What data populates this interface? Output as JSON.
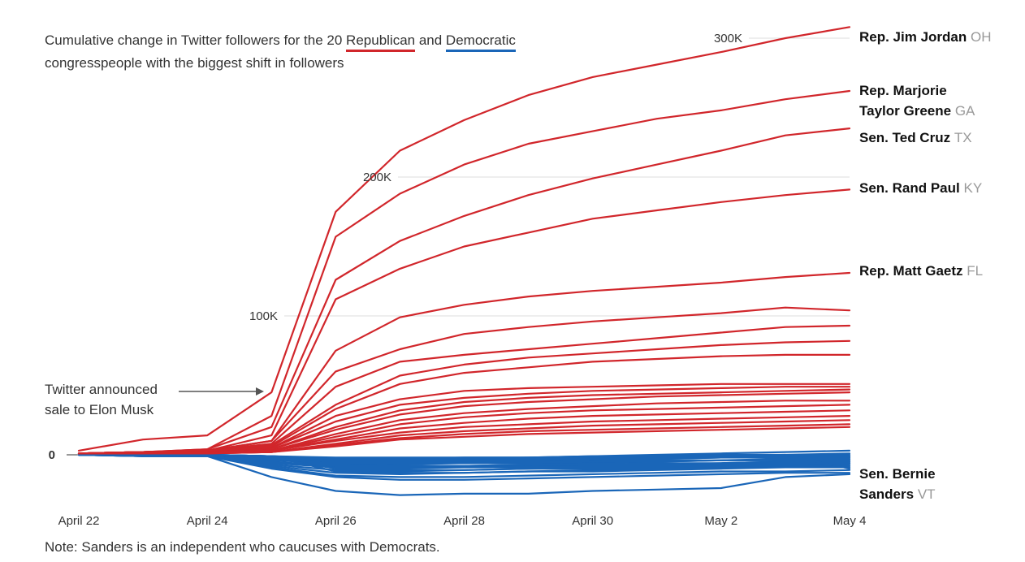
{
  "title": {
    "pre": "Cumulative change in Twitter followers for the 20 ",
    "rep": "Republican",
    "mid": " and ",
    "dem": "Democratic",
    "post": "congresspeople with the biggest shift in followers"
  },
  "note": "Note: Sanders is an independent who caucuses with Democrats.",
  "annotation": {
    "line1": "Twitter announced",
    "line2": "sale to Elon Musk"
  },
  "colors": {
    "republican": "#d1262b",
    "democratic": "#1a66b8",
    "grid": "#dddddd",
    "arrow": "#555555"
  },
  "labels": {
    "jordan": {
      "name": "Rep. Jim Jordan",
      "state": "OH"
    },
    "greene": {
      "line1": "Rep. Marjorie",
      "line2": "Taylor Greene",
      "state": "GA"
    },
    "cruz": {
      "name": "Sen. Ted Cruz",
      "state": "TX"
    },
    "paul": {
      "name": "Sen. Rand Paul",
      "state": "KY"
    },
    "gaetz": {
      "name": "Rep. Matt Gaetz",
      "state": "FL"
    },
    "sanders": {
      "line1": "Sen. Bernie",
      "line2": "Sanders",
      "state": "VT"
    }
  },
  "chart_data": {
    "type": "line",
    "xlabel": "",
    "ylabel": "",
    "x": [
      "2022-04-22",
      "2022-04-23",
      "2022-04-24",
      "2022-04-25",
      "2022-04-26",
      "2022-04-27",
      "2022-04-28",
      "2022-04-29",
      "2022-04-30",
      "2022-05-01",
      "2022-05-02",
      "2022-05-03",
      "2022-05-04"
    ],
    "x_tick_labels": [
      "April 22",
      "April 24",
      "April 26",
      "April 28",
      "April 30",
      "May 2",
      "May 4"
    ],
    "y_tick_labels": [
      "0",
      "100K",
      "200K",
      "300K"
    ],
    "y_ticks": [
      0,
      100000,
      200000,
      300000
    ],
    "ylim": [
      -32000,
      312000
    ],
    "grid": true,
    "series": [
      {
        "name": "Rep. Jim Jordan",
        "party": "R",
        "values": [
          3000,
          11000,
          14000,
          45000,
          175000,
          219000,
          241000,
          259000,
          272000,
          281000,
          290000,
          300000,
          308000
        ]
      },
      {
        "name": "Rep. Marjorie Taylor Greene",
        "party": "R",
        "values": [
          1000,
          2000,
          4000,
          28000,
          157000,
          188000,
          209000,
          224000,
          233000,
          242000,
          248000,
          256000,
          262000
        ]
      },
      {
        "name": "Sen. Ted Cruz",
        "party": "R",
        "values": [
          1000,
          2000,
          4000,
          20000,
          126000,
          154000,
          172000,
          187000,
          199000,
          209000,
          219000,
          230000,
          235000
        ]
      },
      {
        "name": "Sen. Rand Paul",
        "party": "R",
        "values": [
          1000,
          2000,
          3000,
          14000,
          112000,
          134000,
          150000,
          160000,
          170000,
          176000,
          182000,
          187000,
          191000
        ]
      },
      {
        "name": "Rep. Matt Gaetz",
        "party": "R",
        "values": [
          1000,
          2000,
          3000,
          10000,
          75000,
          99000,
          108000,
          114000,
          118000,
          121000,
          124000,
          128000,
          131000
        ]
      },
      {
        "name": "",
        "party": "R",
        "values": [
          1000,
          2000,
          3000,
          10000,
          60000,
          76000,
          87000,
          92000,
          96000,
          99000,
          102000,
          106000,
          104000
        ]
      },
      {
        "name": "",
        "party": "R",
        "values": [
          1000,
          2000,
          3000,
          8000,
          49000,
          67000,
          72000,
          76000,
          80000,
          84000,
          88000,
          92000,
          93000
        ]
      },
      {
        "name": "",
        "party": "R",
        "values": [
          1000,
          2000,
          3000,
          7000,
          36000,
          57000,
          65000,
          70000,
          73000,
          76000,
          79000,
          81000,
          82000
        ]
      },
      {
        "name": "",
        "party": "R",
        "values": [
          1000,
          2000,
          3000,
          6000,
          33000,
          51000,
          59000,
          63000,
          67000,
          69000,
          71000,
          72000,
          72000
        ]
      },
      {
        "name": "",
        "party": "R",
        "values": [
          1000,
          2000,
          3000,
          5000,
          28000,
          40000,
          46000,
          48000,
          49000,
          50000,
          51000,
          51000,
          51000
        ]
      },
      {
        "name": "",
        "party": "R",
        "values": [
          1000,
          2000,
          3000,
          5000,
          24000,
          36000,
          41000,
          44000,
          46000,
          47000,
          48000,
          49000,
          49000
        ]
      },
      {
        "name": "",
        "party": "R",
        "values": [
          1000,
          2000,
          2000,
          4000,
          20000,
          32000,
          38000,
          41000,
          43000,
          44000,
          45000,
          46000,
          47000
        ]
      },
      {
        "name": "",
        "party": "R",
        "values": [
          1000,
          2000,
          2000,
          4000,
          18000,
          29000,
          35000,
          38000,
          40000,
          42000,
          43000,
          44000,
          45000
        ]
      },
      {
        "name": "",
        "party": "R",
        "values": [
          1000,
          2000,
          2000,
          3000,
          15000,
          25000,
          30000,
          33000,
          35000,
          37000,
          38000,
          39000,
          39000
        ]
      },
      {
        "name": "",
        "party": "R",
        "values": [
          1000,
          1000,
          2000,
          3000,
          13000,
          22000,
          27000,
          30000,
          32000,
          33000,
          34000,
          35000,
          36000
        ]
      },
      {
        "name": "",
        "party": "R",
        "values": [
          1000,
          1000,
          2000,
          3000,
          11000,
          19000,
          23000,
          26000,
          28000,
          29000,
          30000,
          31000,
          32000
        ]
      },
      {
        "name": "",
        "party": "R",
        "values": [
          1000,
          1000,
          2000,
          3000,
          10000,
          16000,
          20000,
          22000,
          24000,
          25000,
          26000,
          27000,
          28000
        ]
      },
      {
        "name": "",
        "party": "R",
        "values": [
          1000,
          1000,
          1000,
          2000,
          8000,
          14000,
          17000,
          19000,
          21000,
          22000,
          23000,
          24000,
          25000
        ]
      },
      {
        "name": "",
        "party": "R",
        "values": [
          1000,
          1000,
          1000,
          2000,
          7000,
          12000,
          15000,
          17000,
          18000,
          19000,
          20000,
          21000,
          22000
        ]
      },
      {
        "name": "",
        "party": "R",
        "values": [
          1000,
          1000,
          1000,
          2000,
          6000,
          11000,
          13000,
          15000,
          16000,
          17000,
          18000,
          19000,
          20000
        ]
      },
      {
        "name": "Sen. Bernie Sanders",
        "party": "D",
        "values": [
          0,
          -1000,
          -1000,
          -16000,
          -26000,
          -29000,
          -28000,
          -28000,
          -26000,
          -25000,
          -24000,
          -16000,
          -14000
        ]
      },
      {
        "name": "",
        "party": "D",
        "values": [
          0,
          -1000,
          -1000,
          -10000,
          -16000,
          -18000,
          -18000,
          -17000,
          -16000,
          -15000,
          -14000,
          -13000,
          -13000
        ]
      },
      {
        "name": "",
        "party": "D",
        "values": [
          0,
          -1000,
          -1000,
          -9000,
          -15000,
          -16000,
          -16000,
          -15000,
          -14000,
          -13000,
          -12000,
          -12000,
          -11000
        ]
      },
      {
        "name": "",
        "party": "D",
        "values": [
          0,
          -1000,
          -1000,
          -8000,
          -13000,
          -14000,
          -13000,
          -12000,
          -11000,
          -10000,
          -9000,
          -8000,
          -8000
        ]
      },
      {
        "name": "",
        "party": "D",
        "values": [
          0,
          -1000,
          -1000,
          -7000,
          -11000,
          -12000,
          -11000,
          -10000,
          -9000,
          -8000,
          -8000,
          -7000,
          -6000
        ]
      },
      {
        "name": "",
        "party": "D",
        "values": [
          0,
          0,
          -1000,
          -6000,
          -9000,
          -10000,
          -9000,
          -8000,
          -8000,
          -7000,
          -6000,
          -5000,
          -5000
        ]
      },
      {
        "name": "",
        "party": "D",
        "values": [
          0,
          0,
          -1000,
          -5000,
          -8000,
          -8000,
          -8000,
          -7000,
          -6000,
          -5000,
          -4000,
          -4000,
          -3000
        ]
      },
      {
        "name": "",
        "party": "D",
        "values": [
          0,
          0,
          -1000,
          -4000,
          -6000,
          -7000,
          -6000,
          -5000,
          -4000,
          -3000,
          -2000,
          -2000,
          -1000
        ]
      },
      {
        "name": "",
        "party": "D",
        "values": [
          0,
          0,
          0,
          -4000,
          -5000,
          -5000,
          -5000,
          -4000,
          -3000,
          -2000,
          -1000,
          0,
          1000
        ]
      },
      {
        "name": "",
        "party": "D",
        "values": [
          0,
          0,
          0,
          -3000,
          -4000,
          -4000,
          -3000,
          -2000,
          -1000,
          0,
          1000,
          2000,
          3000
        ]
      },
      {
        "name": "",
        "party": "D",
        "values": [
          0,
          0,
          0,
          -3000,
          -8000,
          -9000,
          -9000,
          -9000,
          -8000,
          -8000,
          -7000,
          -6000,
          -6000
        ]
      },
      {
        "name": "",
        "party": "D",
        "values": [
          0,
          0,
          0,
          -2000,
          -6000,
          -6000,
          -6000,
          -6000,
          -5000,
          -5000,
          -4000,
          -4000,
          -4000
        ]
      },
      {
        "name": "",
        "party": "D",
        "values": [
          0,
          0,
          0,
          -2000,
          -10000,
          -11000,
          -11000,
          -10000,
          -10000,
          -9000,
          -9000,
          -8000,
          -7000
        ]
      },
      {
        "name": "",
        "party": "D",
        "values": [
          0,
          0,
          0,
          -2000,
          -7000,
          -8000,
          -8000,
          -7000,
          -7000,
          -6000,
          -6000,
          -5000,
          -5000
        ]
      },
      {
        "name": "",
        "party": "D",
        "values": [
          0,
          0,
          0,
          -1000,
          -5000,
          -6000,
          -6000,
          -5000,
          -5000,
          -4000,
          -4000,
          -3000,
          -3000
        ]
      },
      {
        "name": "",
        "party": "D",
        "values": [
          0,
          0,
          0,
          -1000,
          -4000,
          -4000,
          -4000,
          -4000,
          -3000,
          -3000,
          -2000,
          -2000,
          -2000
        ]
      },
      {
        "name": "",
        "party": "D",
        "values": [
          0,
          0,
          0,
          -1000,
          -3000,
          -3000,
          -3000,
          -3000,
          -2000,
          -2000,
          -2000,
          -1000,
          -1000
        ]
      },
      {
        "name": "",
        "party": "D",
        "values": [
          0,
          0,
          0,
          -1000,
          -2000,
          -2000,
          -2000,
          -2000,
          -2000,
          -1000,
          -1000,
          -1000,
          0
        ]
      },
      {
        "name": "",
        "party": "D",
        "values": [
          0,
          0,
          0,
          -1000,
          -12000,
          -13000,
          -13000,
          -12000,
          -12000,
          -11000,
          -10000,
          -9000,
          -9000
        ]
      },
      {
        "name": "",
        "party": "D",
        "values": [
          0,
          0,
          0,
          -1000,
          -3000,
          -3000,
          -2000,
          -2000,
          -1000,
          -1000,
          0,
          0,
          -10000
        ]
      }
    ]
  }
}
